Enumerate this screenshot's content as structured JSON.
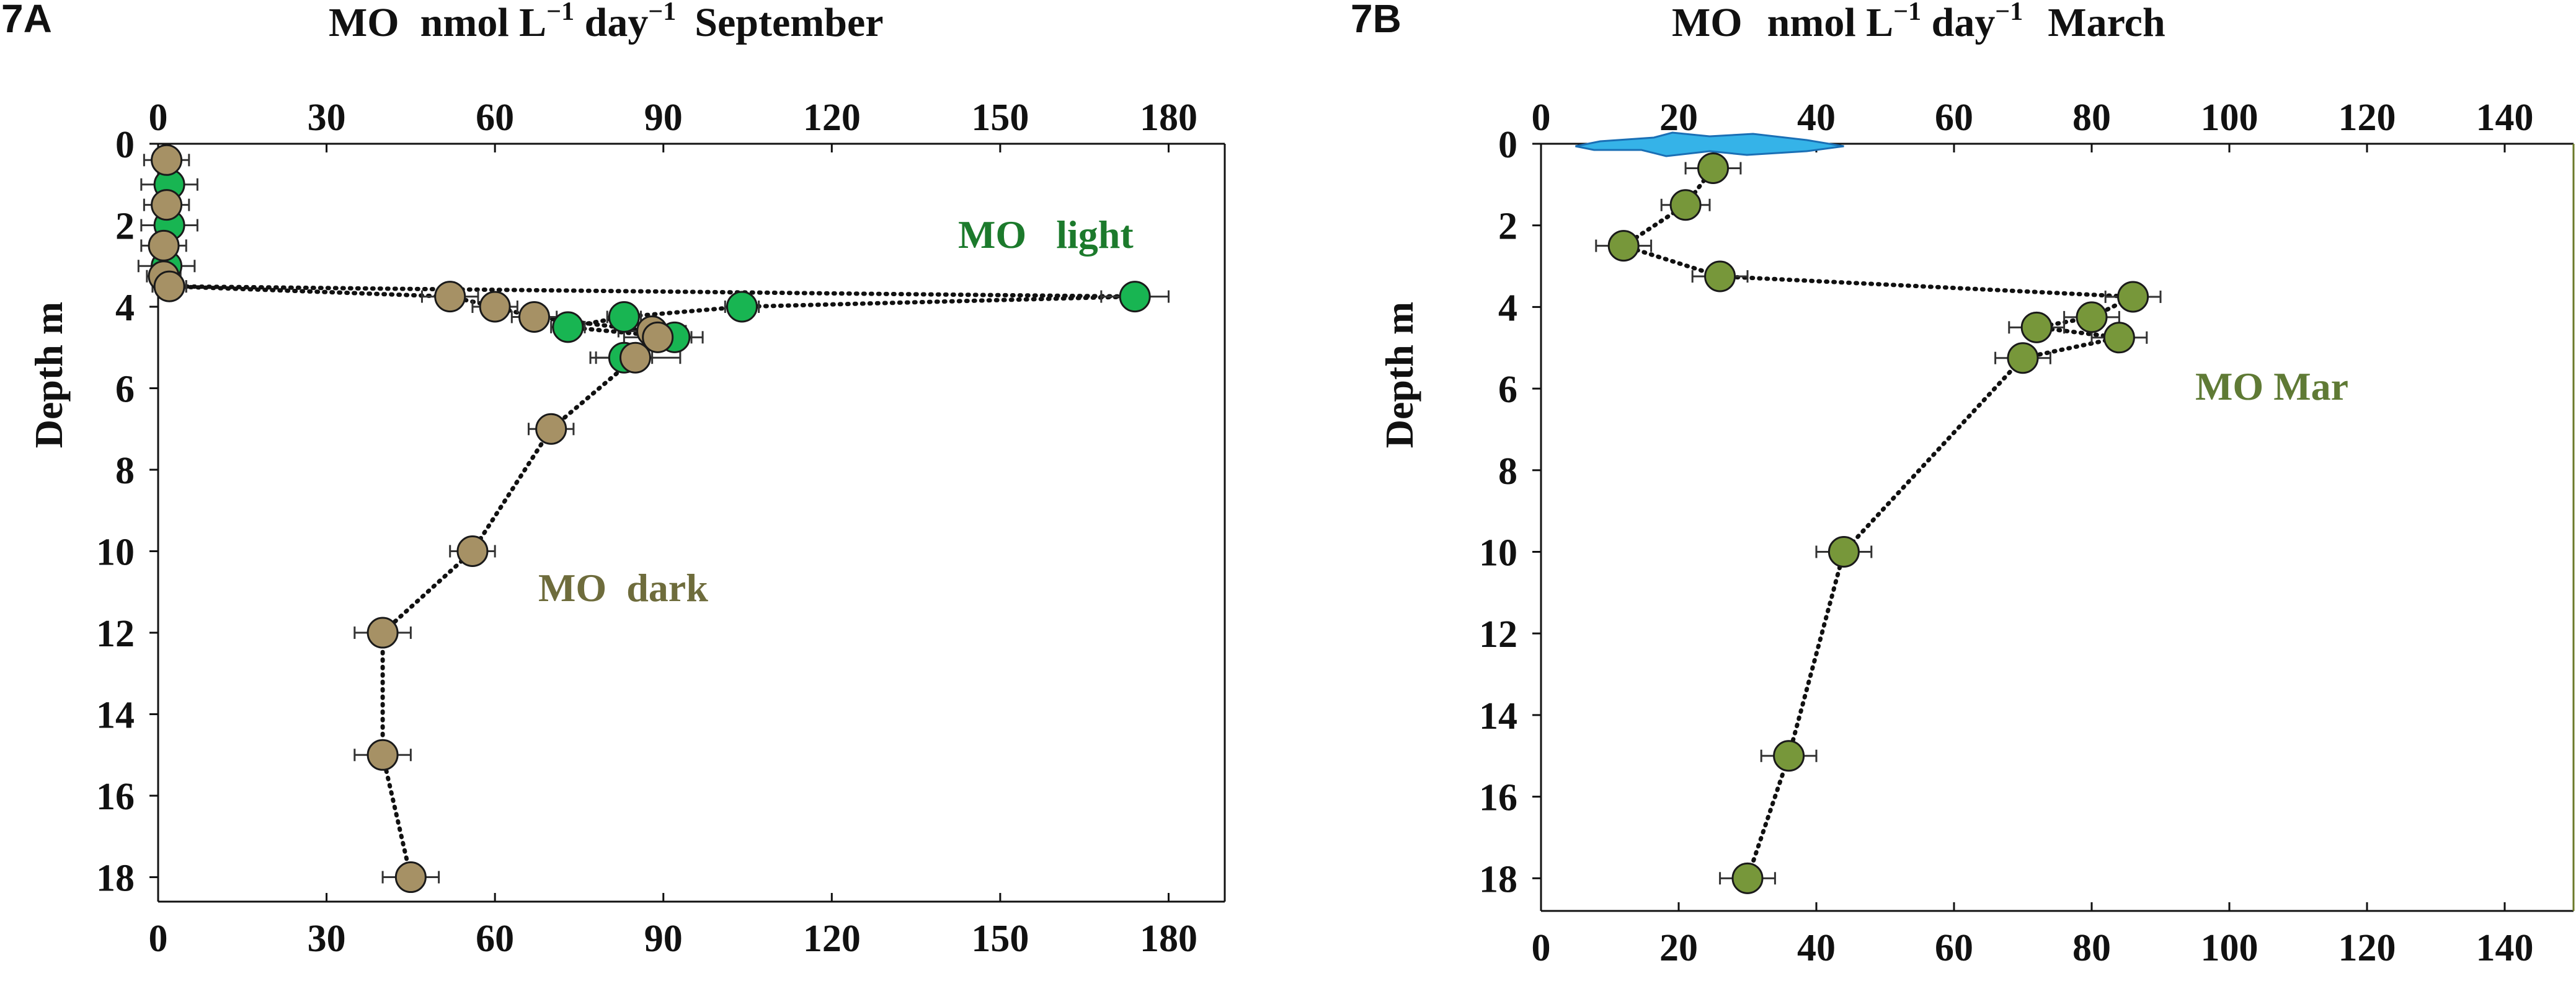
{
  "chart_data": [
    {
      "id": "7A",
      "type": "scatter",
      "panel_label": "7A",
      "title_parts": [
        "MO",
        "nmol L",
        "−1",
        " day",
        "−1",
        "September"
      ],
      "xlabel": "MO  nmol L⁻¹ day⁻¹  September",
      "ylabel": "Depth   m",
      "xlim": [
        0,
        190
      ],
      "ylim": [
        0,
        18.6
      ],
      "x_ticks": [
        0,
        30,
        60,
        90,
        120,
        150,
        180
      ],
      "y_ticks": [
        0,
        2,
        4,
        6,
        8,
        10,
        12,
        14,
        16,
        18
      ],
      "x_tick_labels": [
        "0",
        "30",
        "60",
        "90",
        "120",
        "150",
        "180"
      ],
      "y_tick_labels": [
        "0",
        "2",
        "4",
        "6",
        "8",
        "10",
        "12",
        "14",
        "16",
        "18"
      ],
      "series": [
        {
          "name": "MO   light",
          "color": "#18b552",
          "label_color": "#1c7a2c",
          "points": [
            {
              "x": 2,
              "y": 1.0,
              "err": 5
            },
            {
              "x": 2,
              "y": 2.0,
              "err": 5
            },
            {
              "x": 1.5,
              "y": 3.0,
              "err": 5
            },
            {
              "x": 2,
              "y": 3.5,
              "err": 3
            },
            {
              "x": 174,
              "y": 3.75,
              "err": 6
            },
            {
              "x": 104,
              "y": 4.0,
              "err": 3
            },
            {
              "x": 83,
              "y": 4.25,
              "err": 3
            },
            {
              "x": 73,
              "y": 4.5,
              "err": 3
            },
            {
              "x": 92,
              "y": 4.75,
              "err": 5
            },
            {
              "x": 83,
              "y": 5.25,
              "err": 5
            }
          ]
        },
        {
          "name": "MO  dark",
          "color": "#a69165",
          "label_color": "#6e6c3c",
          "points": [
            {
              "x": 1.5,
              "y": 0.4,
              "err": 4
            },
            {
              "x": 1.5,
              "y": 1.5,
              "err": 4
            },
            {
              "x": 1,
              "y": 2.5,
              "err": 4
            },
            {
              "x": 1,
              "y": 3.25,
              "err": 3
            },
            {
              "x": 2,
              "y": 3.5,
              "err": 3
            },
            {
              "x": 52,
              "y": 3.75,
              "err": 5
            },
            {
              "x": 60,
              "y": 4.0,
              "err": 4
            },
            {
              "x": 67,
              "y": 4.25,
              "err": 4
            },
            {
              "x": 88,
              "y": 4.6,
              "err": 6
            },
            {
              "x": 89,
              "y": 4.75,
              "err": 6
            },
            {
              "x": 85,
              "y": 5.25,
              "err": 8
            },
            {
              "x": 70,
              "y": 7.0,
              "err": 4
            },
            {
              "x": 56,
              "y": 10.0,
              "err": 4
            },
            {
              "x": 40,
              "y": 12.0,
              "err": 5
            },
            {
              "x": 40,
              "y": 15.0,
              "err": 5
            },
            {
              "x": 45,
              "y": 18.0,
              "err": 5
            }
          ]
        }
      ],
      "line_style": "dotted",
      "line_color": "#111111",
      "axis_color": "#111111"
    },
    {
      "id": "7B",
      "type": "scatter",
      "panel_label": "7B",
      "title_parts": [
        "MO",
        "nmol L",
        "−1",
        " day",
        "−1",
        "March"
      ],
      "xlabel": "MO   nmol L⁻¹ day⁻¹   March",
      "ylabel": "Depth   m",
      "xlim": [
        0,
        150
      ],
      "ylim": [
        0,
        18.8
      ],
      "x_ticks": [
        0,
        20,
        40,
        60,
        80,
        100,
        120,
        140
      ],
      "y_ticks": [
        0,
        2,
        4,
        6,
        8,
        10,
        12,
        14,
        16,
        18
      ],
      "x_tick_labels": [
        "0",
        "20",
        "40",
        "60",
        "80",
        "100",
        "120",
        "140"
      ],
      "y_tick_labels": [
        "0",
        "2",
        "4",
        "6",
        "8",
        "10",
        "12",
        "14",
        "16",
        "18"
      ],
      "series": [
        {
          "name": "MO Mar",
          "color": "#77973a",
          "label_color": "#5f7a35",
          "points": [
            {
              "x": 25,
              "y": 0.6,
              "err": 4
            },
            {
              "x": 21,
              "y": 1.5,
              "err": 3.5
            },
            {
              "x": 12,
              "y": 2.5,
              "err": 4
            },
            {
              "x": 26,
              "y": 3.25,
              "err": 4
            },
            {
              "x": 86,
              "y": 3.75,
              "err": 4
            },
            {
              "x": 80,
              "y": 4.25,
              "err": 4
            },
            {
              "x": 84,
              "y": 4.75,
              "err": 4
            },
            {
              "x": 72,
              "y": 4.5,
              "err": 4
            },
            {
              "x": 70,
              "y": 5.25,
              "err": 4
            },
            {
              "x": 44,
              "y": 10.0,
              "err": 4
            },
            {
              "x": 36,
              "y": 15.0,
              "err": 4
            },
            {
              "x": 30,
              "y": 18.0,
              "err": 4
            }
          ]
        }
      ],
      "ice_marker": {
        "name": "ice-cover",
        "x_from": 5,
        "x_to": 44,
        "y": 0,
        "color": "#35b3e8"
      },
      "line_style": "dotted",
      "line_color": "#111111",
      "axis_color": "#6b7a2a"
    }
  ]
}
